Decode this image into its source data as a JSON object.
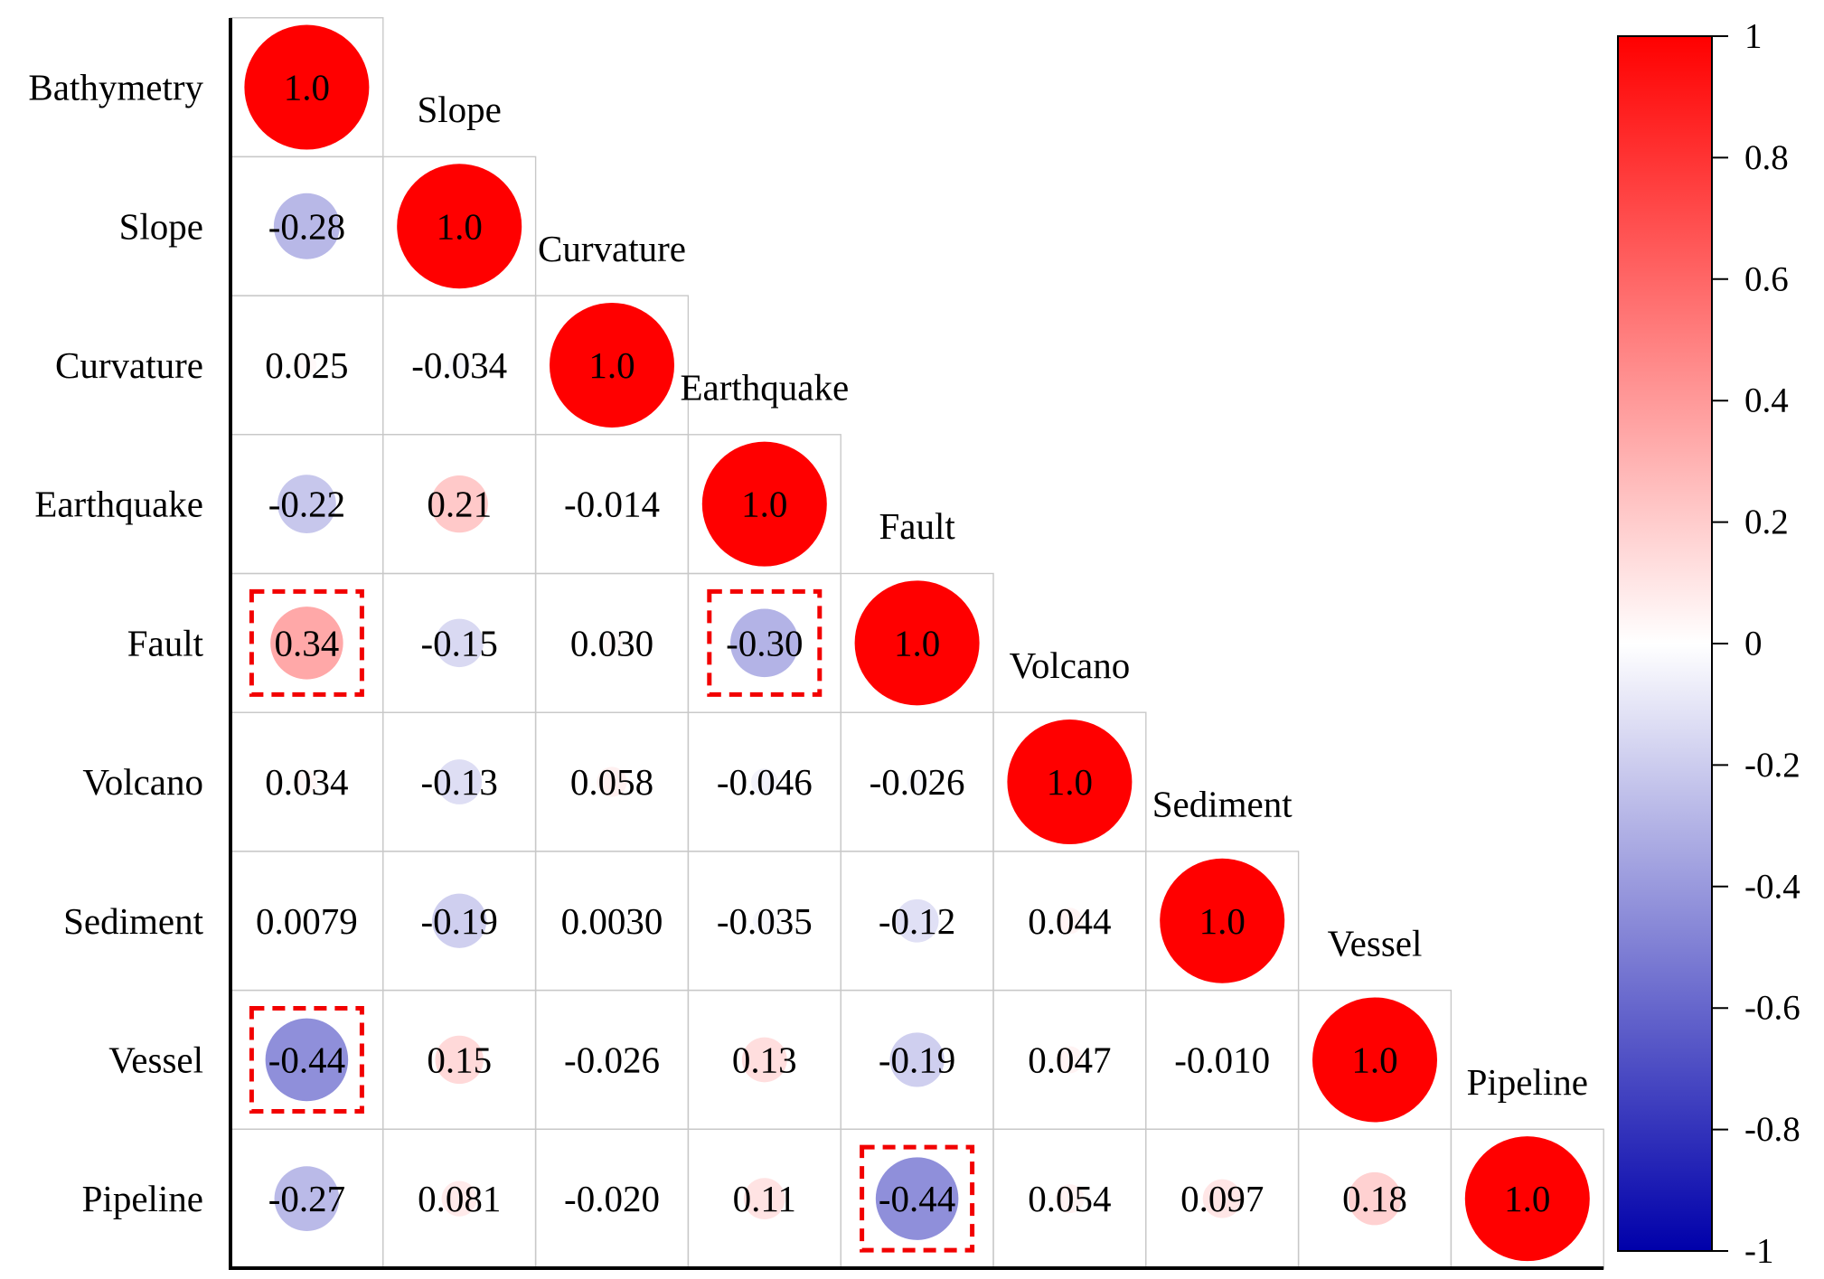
{
  "chart_data": {
    "type": "heatmap",
    "subtype": "correlation-matrix-lower-triangle-circles",
    "variables": [
      "Bathymetry",
      "Slope",
      "Curvature",
      "Earthquake",
      "Fault",
      "Volcano",
      "Sediment",
      "Vessel",
      "Pipeline"
    ],
    "matrix_labels": [
      [
        "1.0"
      ],
      [
        "-0.28",
        "1.0"
      ],
      [
        "0.025",
        "-0.034",
        "1.0"
      ],
      [
        "-0.22",
        "0.21",
        "-0.014",
        "1.0"
      ],
      [
        "0.34",
        "-0.15",
        "0.030",
        "-0.30",
        "1.0"
      ],
      [
        "0.034",
        "-0.13",
        "0.058",
        "-0.046",
        "-0.026",
        "1.0"
      ],
      [
        "0.0079",
        "-0.19",
        "0.0030",
        "-0.035",
        "-0.12",
        "0.044",
        "1.0"
      ],
      [
        "-0.44",
        "0.15",
        "-0.026",
        "0.13",
        "-0.19",
        "0.047",
        "-0.010",
        "1.0"
      ],
      [
        "-0.27",
        "0.081",
        "-0.020",
        "0.11",
        "-0.44",
        "0.054",
        "0.097",
        "0.18",
        "1.0"
      ]
    ],
    "highlighted_cells": [
      {
        "row": "Fault",
        "col": "Bathymetry"
      },
      {
        "row": "Fault",
        "col": "Earthquake"
      },
      {
        "row": "Vessel",
        "col": "Bathymetry"
      },
      {
        "row": "Pipeline",
        "col": "Fault"
      }
    ],
    "colorbar": {
      "range": [
        -1,
        1
      ],
      "ticks": [
        "1",
        "0.8",
        "0.6",
        "0.4",
        "0.2",
        "0",
        "-0.2",
        "-0.4",
        "-0.6",
        "-0.8",
        "-1"
      ],
      "colors": {
        "negative": "#0000aa",
        "zero": "#ffffff",
        "positive": "#ff0000"
      }
    },
    "highlight_color": "#f20000"
  }
}
